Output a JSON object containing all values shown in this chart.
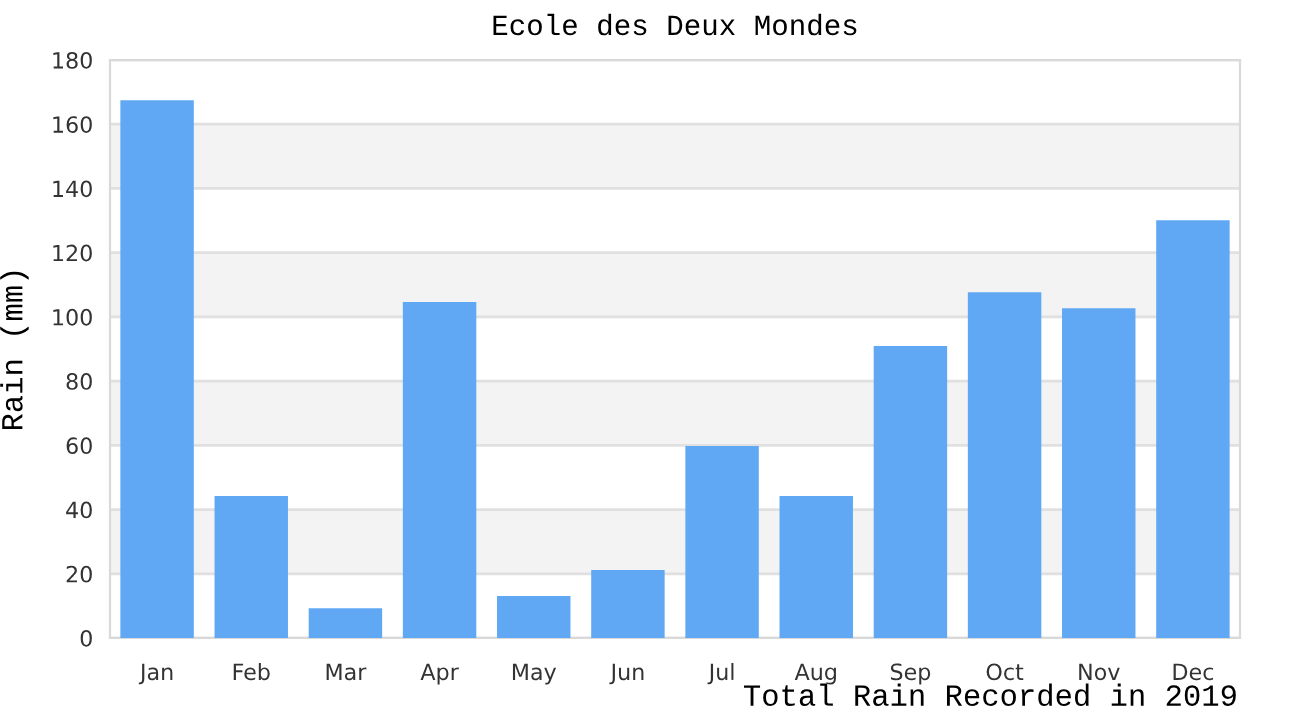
{
  "chart_data": {
    "type": "bar",
    "title": "Ecole des Deux Mondes",
    "ylabel": "Rain (mm)",
    "categories": [
      "Jan",
      "Feb",
      "Mar",
      "Apr",
      "May",
      "Jun",
      "Jul",
      "Aug",
      "Sep",
      "Oct",
      "Nov",
      "Dec"
    ],
    "values": [
      167.5,
      44.2,
      9.3,
      104.6,
      13.1,
      21.2,
      59.8,
      44.2,
      90.9,
      107.7,
      102.7,
      130.1
    ],
    "color": "#60a8f4",
    "ylim": [
      0,
      180
    ],
    "yticks": [
      0,
      20,
      40,
      60,
      80,
      100,
      120,
      140,
      160,
      180
    ],
    "grid": "y",
    "bands": [
      {
        "axis": "y",
        "from": 20,
        "to": 40,
        "color": "#f3f3f3"
      },
      {
        "axis": "y",
        "from": 60,
        "to": 80,
        "color": "#f3f3f3"
      },
      {
        "axis": "y",
        "from": 100,
        "to": 120,
        "color": "#f3f3f3"
      },
      {
        "axis": "y",
        "from": 140,
        "to": 160,
        "color": "#f3f3f3"
      }
    ],
    "annotations": [
      "Total Rain Recorded in 2019"
    ]
  }
}
